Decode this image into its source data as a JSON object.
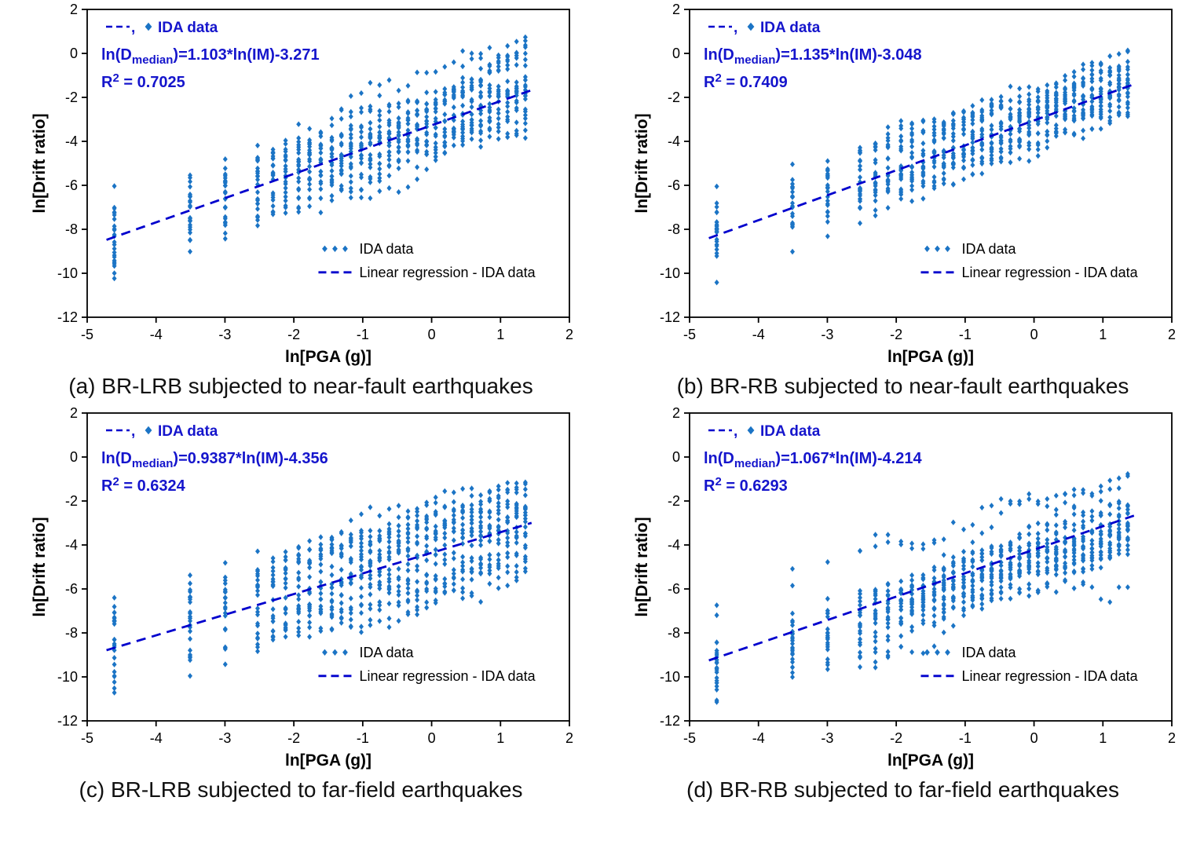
{
  "figure": {
    "background": "#ffffff",
    "axis_color": "#000000",
    "point_color": "#1b74c5",
    "line_color": "#0000cd",
    "annotation_color": "#1515cc",
    "legend_text_color": "#000000",
    "intensities_g": [
      0.01,
      0.03,
      0.05,
      0.08,
      0.1,
      0.12,
      0.145,
      0.17,
      0.2,
      0.235,
      0.27,
      0.31,
      0.36,
      0.41,
      0.47,
      0.54,
      0.62,
      0.71,
      0.81,
      0.93,
      1.06,
      1.21,
      1.38,
      1.57,
      1.79,
      2.04,
      2.32,
      2.64,
      3.01,
      3.43,
      3.9
    ]
  },
  "chart_data": [
    {
      "type": "scatter",
      "panel": "a",
      "caption": "(a) BR-LRB subjected to near-fault earthquakes",
      "xlabel": "ln[PGA (g)]",
      "ylabel": "ln[Drift ratio]",
      "xlim": [
        -5,
        2
      ],
      "ylim": [
        -12,
        2
      ],
      "xticks": [
        -5,
        -4,
        -3,
        -2,
        -1,
        0,
        1,
        2
      ],
      "yticks": [
        -12,
        -10,
        -8,
        -6,
        -4,
        -2,
        0,
        2
      ],
      "regression": {
        "slope": 1.103,
        "intercept": -3.271,
        "x_start": -4.72,
        "x_end": 1.45
      },
      "equation": {
        "pre": "ln(D",
        "sub": "median",
        "post": ")=1.103*ln(IM)-3.271"
      },
      "r_squared": {
        "pre": "R",
        "sup": "2",
        "post": " = 0.7025"
      },
      "inline_legend": {
        "comma": ",",
        "label": "IDA data"
      },
      "legend": [
        {
          "marker": "diamonds",
          "label": "IDA data"
        },
        {
          "marker": "dash",
          "label": "Linear regression - IDA data"
        }
      ],
      "legend_pos": [
        -1.62,
        -9.1
      ],
      "scatter_spec": {
        "seed": 7,
        "n_curves": 24,
        "offset_sigma": 0.9,
        "slope_sigma": 0.07,
        "walk_sigma": 0.3,
        "y_clip": [
          -11.7,
          1.7
        ]
      }
    },
    {
      "type": "scatter",
      "panel": "b",
      "caption": "(b) BR-RB subjected to near-fault earthquakes",
      "xlabel": "ln[PGA (g)]",
      "ylabel": "ln[Drift ratio]",
      "xlim": [
        -5,
        2
      ],
      "ylim": [
        -12,
        2
      ],
      "xticks": [
        -5,
        -4,
        -3,
        -2,
        -1,
        0,
        1,
        2
      ],
      "yticks": [
        -12,
        -10,
        -8,
        -6,
        -4,
        -2,
        0,
        2
      ],
      "regression": {
        "slope": 1.135,
        "intercept": -3.048,
        "x_start": -4.72,
        "x_end": 1.45
      },
      "equation": {
        "pre": "ln(D",
        "sub": "median",
        "post": ")=1.135*ln(IM)-3.048"
      },
      "r_squared": {
        "pre": "R",
        "sup": "2",
        "post": " = 0.7409"
      },
      "inline_legend": {
        "comma": ",",
        "label": "IDA data"
      },
      "legend": [
        {
          "marker": "diamonds",
          "label": "IDA data"
        },
        {
          "marker": "dash",
          "label": "Linear regression - IDA data"
        }
      ],
      "legend_pos": [
        -1.62,
        -9.1
      ],
      "scatter_spec": {
        "seed": 13,
        "n_curves": 24,
        "offset_sigma": 0.85,
        "slope_sigma": 0.07,
        "walk_sigma": 0.3,
        "y_clip": [
          -11.7,
          1.7
        ]
      }
    },
    {
      "type": "scatter",
      "panel": "c",
      "caption": "(c) BR-LRB subjected to far-field earthquakes",
      "xlabel": "ln[PGA (g)]",
      "ylabel": "ln[Drift ratio]",
      "xlim": [
        -5,
        2
      ],
      "ylim": [
        -12,
        2
      ],
      "xticks": [
        -5,
        -4,
        -3,
        -2,
        -1,
        0,
        1,
        2
      ],
      "yticks": [
        -12,
        -10,
        -8,
        -6,
        -4,
        -2,
        0,
        2
      ],
      "regression": {
        "slope": 0.9387,
        "intercept": -4.356,
        "x_start": -4.72,
        "x_end": 1.45
      },
      "equation": {
        "pre": "ln(D",
        "sub": "median",
        "post": ")=0.9387*ln(IM)-4.356"
      },
      "r_squared": {
        "pre": "R",
        "sup": "2",
        "post": " = 0.6324"
      },
      "inline_legend": {
        "comma": ",",
        "label": "IDA data"
      },
      "legend": [
        {
          "marker": "diamonds",
          "label": "IDA data"
        },
        {
          "marker": "dash",
          "label": "Linear regression - IDA data"
        }
      ],
      "legend_pos": [
        -1.62,
        -9.1
      ],
      "scatter_spec": {
        "seed": 21,
        "n_curves": 24,
        "offset_sigma": 1.0,
        "slope_sigma": 0.07,
        "walk_sigma": 0.3,
        "y_clip": [
          -11.7,
          1.7
        ]
      }
    },
    {
      "type": "scatter",
      "panel": "d",
      "caption": "(d) BR-RB subjected to far-field earthquakes",
      "xlabel": "ln[PGA (g)]",
      "ylabel": "ln[Drift ratio]",
      "xlim": [
        -5,
        2
      ],
      "ylim": [
        -12,
        2
      ],
      "xticks": [
        -5,
        -4,
        -3,
        -2,
        -1,
        0,
        1,
        2
      ],
      "yticks": [
        -12,
        -10,
        -8,
        -6,
        -4,
        -2,
        0,
        2
      ],
      "regression": {
        "slope": 1.067,
        "intercept": -4.214,
        "x_start": -4.72,
        "x_end": 1.45
      },
      "equation": {
        "pre": "ln(D",
        "sub": "median",
        "post": ")=1.067*ln(IM)-4.214"
      },
      "r_squared": {
        "pre": "R",
        "sup": "2",
        "post": " = 0.6293"
      },
      "inline_legend": {
        "comma": ",",
        "label": "IDA data"
      },
      "legend": [
        {
          "marker": "diamonds",
          "label": "IDA data"
        },
        {
          "marker": "dash",
          "label": "Linear regression - IDA data"
        }
      ],
      "legend_pos": [
        -1.62,
        -9.1
      ],
      "scatter_spec": {
        "seed": 29,
        "n_curves": 24,
        "offset_sigma": 0.95,
        "slope_sigma": 0.07,
        "walk_sigma": 0.3,
        "y_clip": [
          -11.7,
          1.7
        ]
      }
    }
  ]
}
